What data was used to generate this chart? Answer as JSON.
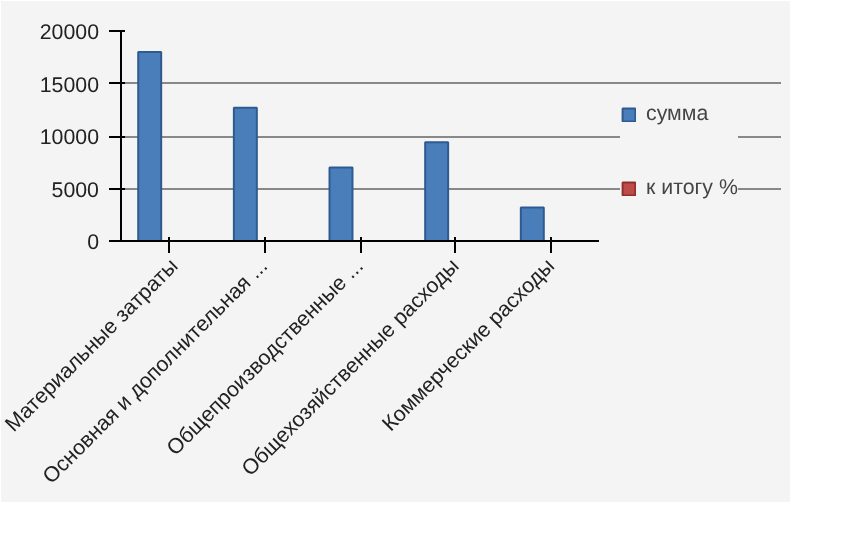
{
  "chart_data": {
    "type": "bar",
    "categories": [
      "Материальные затраты",
      "Основная и дополнительная ...",
      "Общепроизводственные ...",
      "Общехозяйственные расходы",
      "Коммерческие расходы"
    ],
    "series": [
      {
        "name": "сумма",
        "color": "#4a7ebb",
        "values": [
          18000,
          12700,
          7000,
          9400,
          3200
        ]
      },
      {
        "name": "к итогу %",
        "color": "#be4b48",
        "values": [
          null,
          null,
          null,
          null,
          null
        ]
      }
    ],
    "ylim": [
      0,
      20000
    ],
    "yticks": [
      0,
      5000,
      10000,
      15000,
      20000
    ],
    "grid": "y",
    "legend": "right"
  }
}
